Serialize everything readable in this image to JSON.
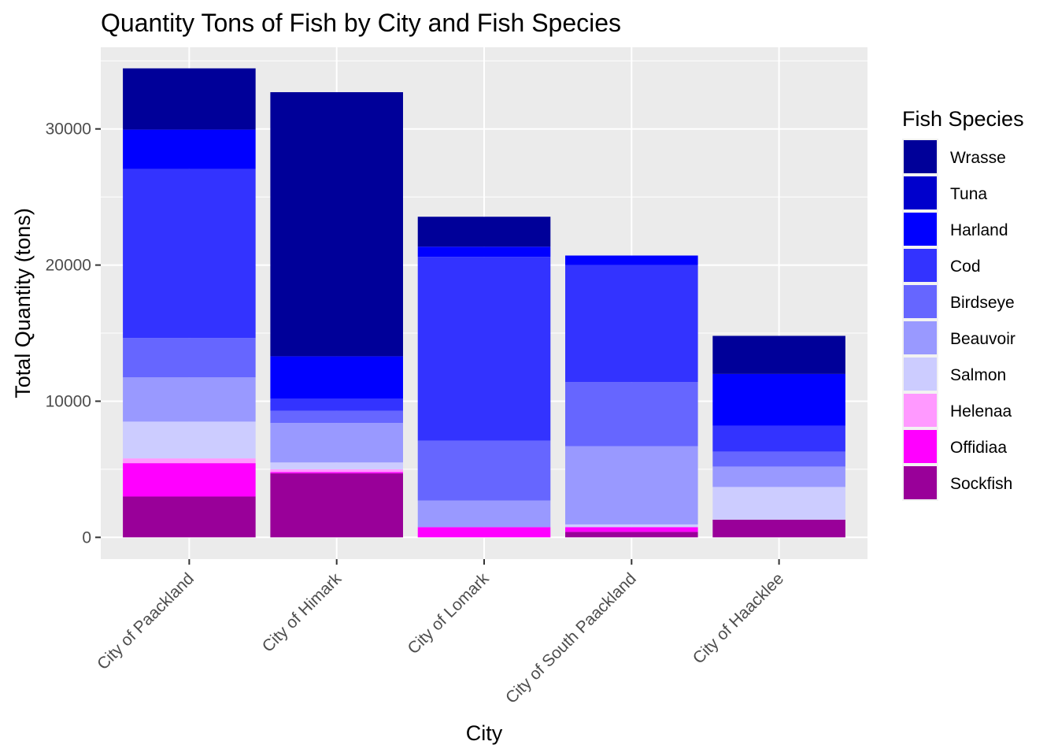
{
  "chart_data": {
    "type": "bar",
    "stacked": true,
    "title": "Quantity Tons of Fish by City and Fish Species",
    "xlabel": "City",
    "ylabel": "Total Quantity (tons)",
    "ylim": [
      -1600,
      36000
    ],
    "yticks": [
      0,
      10000,
      20000,
      30000
    ],
    "grid": true,
    "legend_title": "Fish Species",
    "legend_position": "right",
    "categories": [
      "City of Paackland",
      "City of Himark",
      "City of Lomark",
      "City of South Paackland",
      "City of Haacklee"
    ],
    "series": [
      {
        "name": "Sockfish",
        "color": "#990099",
        "values": [
          3000,
          4700,
          0,
          400,
          1300
        ]
      },
      {
        "name": "Offidiaa",
        "color": "#ff00ff",
        "values": [
          2450,
          100,
          750,
          350,
          0
        ]
      },
      {
        "name": "Helenaa",
        "color": "#ff99ff",
        "values": [
          350,
          200,
          0,
          0,
          0
        ]
      },
      {
        "name": "Salmon",
        "color": "#ccccff",
        "values": [
          2700,
          500,
          0,
          200,
          2400
        ]
      },
      {
        "name": "Beauvoir",
        "color": "#9999ff",
        "values": [
          3250,
          2900,
          1950,
          5750,
          1500
        ]
      },
      {
        "name": "Birdseye",
        "color": "#6666ff",
        "values": [
          2900,
          900,
          4400,
          4700,
          1100
        ]
      },
      {
        "name": "Cod",
        "color": "#3333ff",
        "values": [
          12400,
          900,
          13500,
          8600,
          1900
        ]
      },
      {
        "name": "Harland",
        "color": "#0000ff",
        "values": [
          2900,
          3100,
          750,
          700,
          3800
        ]
      },
      {
        "name": "Tuna",
        "color": "#0000cc",
        "values": [
          0,
          0,
          0,
          0,
          0
        ]
      },
      {
        "name": "Wrasse",
        "color": "#000099",
        "values": [
          4500,
          19400,
          2200,
          0,
          2800
        ]
      }
    ]
  }
}
